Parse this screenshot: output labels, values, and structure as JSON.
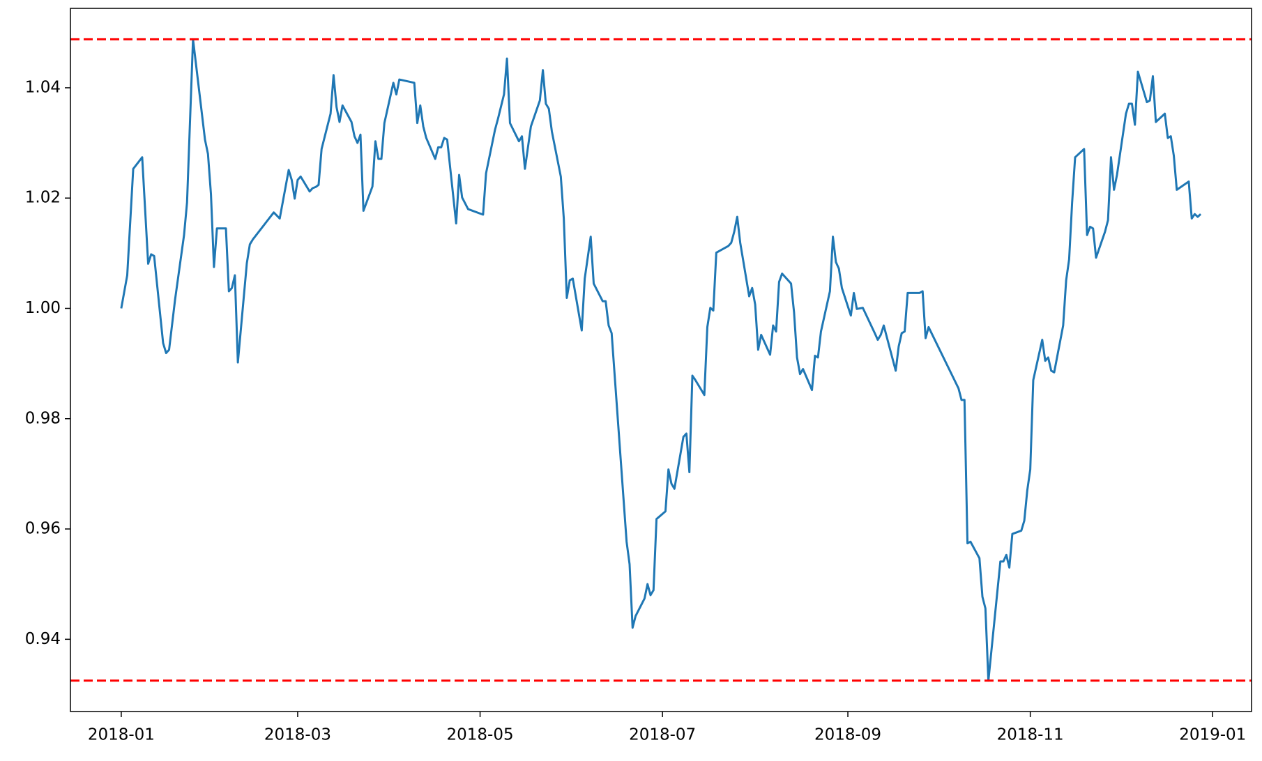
{
  "chart_data": {
    "type": "line",
    "x": [
      0,
      2,
      4,
      7,
      9,
      10,
      11,
      14,
      15,
      16,
      18,
      21,
      22,
      24,
      26,
      28,
      29,
      30,
      31,
      32,
      35,
      36,
      37,
      38,
      39,
      42,
      43,
      44,
      51,
      53,
      56,
      57,
      58,
      59,
      60,
      63,
      64,
      65,
      66,
      67,
      70,
      71,
      72,
      73,
      74,
      77,
      78,
      79,
      80,
      81,
      84,
      85,
      86,
      87,
      88,
      91,
      92,
      93,
      98,
      99,
      100,
      101,
      102,
      105,
      106,
      107,
      108,
      109,
      112,
      113,
      114,
      116,
      121,
      122,
      125,
      126,
      128,
      129,
      130,
      133,
      134,
      135,
      137,
      140,
      141,
      142,
      143,
      144,
      147,
      148,
      149,
      150,
      151,
      154,
      155,
      157,
      158,
      161,
      162,
      163,
      164,
      169,
      170,
      171,
      172,
      175,
      176,
      177,
      178,
      179,
      182,
      183,
      184,
      185,
      188,
      189,
      190,
      191,
      192,
      195,
      196,
      197,
      198,
      199,
      203,
      204,
      205,
      206,
      207,
      210,
      211,
      212,
      213,
      214,
      217,
      218,
      219,
      220,
      221,
      224,
      225,
      226,
      227,
      228,
      231,
      232,
      233,
      234,
      237,
      238,
      239,
      240,
      241,
      244,
      245,
      246,
      248,
      252,
      253,
      254,
      255,
      257,
      259,
      260,
      261,
      262,
      263,
      267,
      268,
      269,
      270,
      280,
      281,
      282,
      283,
      284,
      287,
      288,
      289,
      290,
      294,
      295,
      296,
      297,
      298,
      301,
      302,
      303,
      304,
      305,
      308,
      309,
      310,
      311,
      312,
      315,
      316,
      317,
      318,
      319,
      322,
      323,
      324,
      325,
      326,
      329,
      330,
      331,
      332,
      333,
      336,
      337,
      338,
      339,
      340,
      343,
      344,
      345,
      346,
      349,
      350,
      351,
      352,
      353,
      357,
      358,
      359,
      360,
      361
    ],
    "series": [
      {
        "color": "#1f77b4",
        "values": [
          1.0,
          1.006,
          1.0253,
          1.0274,
          1.0081,
          1.0098,
          1.0095,
          0.9937,
          0.9919,
          0.9925,
          1.0016,
          1.0133,
          1.0192,
          1.0488,
          1.0397,
          1.0306,
          1.028,
          1.0207,
          1.0075,
          1.0145,
          1.0145,
          1.0031,
          1.0037,
          1.006,
          0.9902,
          1.0082,
          1.0116,
          1.0125,
          1.0174,
          1.0163,
          1.0251,
          1.0233,
          1.0199,
          1.0233,
          1.0239,
          1.0212,
          1.0218,
          1.022,
          1.0224,
          1.0289,
          1.0353,
          1.0423,
          1.0365,
          1.0338,
          1.0368,
          1.0338,
          1.0312,
          1.03,
          1.0315,
          1.0177,
          1.0221,
          1.0303,
          1.0271,
          1.0271,
          1.0336,
          1.0409,
          1.0388,
          1.0415,
          1.0409,
          1.0336,
          1.0368,
          1.033,
          1.0309,
          1.0271,
          1.0292,
          1.0292,
          1.0309,
          1.0306,
          1.0154,
          1.0242,
          1.0201,
          1.018,
          1.017,
          1.0245,
          1.0324,
          1.0344,
          1.0388,
          1.0453,
          1.0336,
          1.0303,
          1.0312,
          1.0253,
          1.033,
          1.0377,
          1.0432,
          1.0371,
          1.0362,
          1.0321,
          1.0239,
          1.0163,
          1.0019,
          1.0051,
          1.0054,
          0.996,
          1.0054,
          1.013,
          1.0045,
          1.0013,
          1.0013,
          0.9969,
          0.9955,
          0.9577,
          0.9536,
          0.9421,
          0.9442,
          0.9474,
          0.95,
          0.948,
          0.9489,
          0.9618,
          0.9632,
          0.9708,
          0.9682,
          0.9673,
          0.9767,
          0.9773,
          0.9703,
          0.9878,
          0.987,
          0.9843,
          0.9966,
          1.0001,
          0.9996,
          1.0101,
          1.0113,
          1.0119,
          1.0139,
          1.0166,
          1.0119,
          1.0022,
          1.0037,
          1.0007,
          0.9925,
          0.9952,
          0.9916,
          0.9969,
          0.9958,
          1.0048,
          1.0063,
          1.0045,
          0.9993,
          0.9911,
          0.9881,
          0.989,
          0.9852,
          0.9914,
          0.9911,
          0.9958,
          1.0031,
          1.013,
          1.0084,
          1.0072,
          1.0037,
          0.9987,
          1.0028,
          0.9999,
          1.0001,
          0.9955,
          0.9943,
          0.9952,
          0.9969,
          0.9928,
          0.9887,
          0.9931,
          0.9955,
          0.9958,
          1.0028,
          1.0028,
          1.0031,
          0.9946,
          0.9966,
          0.9855,
          0.9834,
          0.9834,
          0.9574,
          0.9577,
          0.9547,
          0.9477,
          0.9456,
          0.9325,
          0.9541,
          0.9541,
          0.9553,
          0.953,
          0.9591,
          0.9597,
          0.9615,
          0.967,
          0.9708,
          0.987,
          0.9943,
          0.9905,
          0.9911,
          0.9887,
          0.9884,
          0.9969,
          1.0051,
          1.0089,
          1.0192,
          1.0274,
          1.0289,
          1.0133,
          1.0148,
          1.0145,
          1.0092,
          1.0139,
          1.016,
          1.0274,
          1.0215,
          1.0242,
          1.0353,
          1.0371,
          1.0371,
          1.0333,
          1.0429,
          1.0374,
          1.0377,
          1.0421,
          1.0338,
          1.0353,
          1.0309,
          1.0312,
          1.0277,
          1.0215,
          1.023,
          1.0163,
          1.0171,
          1.0166,
          1.0171
        ]
      }
    ],
    "xlim": [
      -17,
      378
    ],
    "xticks": [
      {
        "value": 0,
        "label": "2018-01"
      },
      {
        "value": 59,
        "label": "2018-03"
      },
      {
        "value": 120,
        "label": "2018-05"
      },
      {
        "value": 181,
        "label": "2018-07"
      },
      {
        "value": 243,
        "label": "2018-09"
      },
      {
        "value": 304,
        "label": "2018-11"
      },
      {
        "value": 365,
        "label": "2019-01"
      }
    ],
    "ylim": [
      0.9269,
      1.0544
    ],
    "yticks": [
      0.94,
      0.96,
      0.98,
      {
        "value": 1,
        "label": "1.00"
      },
      1.02,
      1.04
    ],
    "hlines": [
      1.0488,
      0.9325
    ],
    "hline_color": "#ff0000",
    "hline_dash": true
  }
}
